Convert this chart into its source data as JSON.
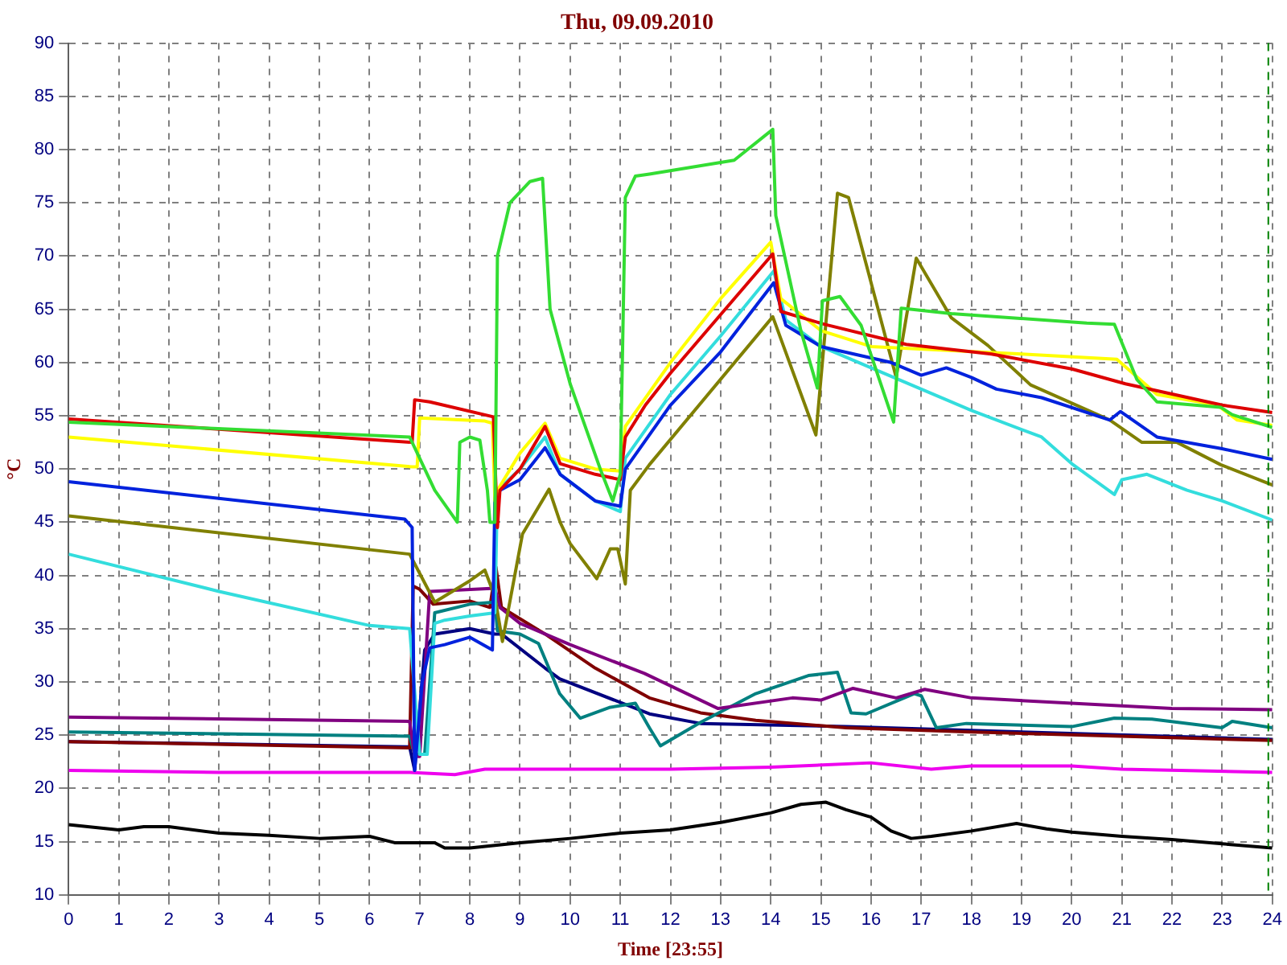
{
  "chart_data": {
    "type": "line",
    "title": "Thu, 09.09.2010",
    "xlabel": "Time [23:55]",
    "ylabel": "°C",
    "xlim": [
      0,
      24
    ],
    "ylim": [
      10,
      90
    ],
    "xticks": [
      0,
      1,
      2,
      3,
      4,
      5,
      6,
      7,
      8,
      9,
      10,
      11,
      12,
      13,
      14,
      15,
      16,
      17,
      18,
      19,
      20,
      21,
      22,
      23,
      24
    ],
    "yticks": [
      10,
      15,
      20,
      25,
      30,
      35,
      40,
      45,
      50,
      55,
      60,
      65,
      70,
      75,
      80,
      85,
      90
    ],
    "grid": true,
    "legend": false,
    "ref_lines": [
      {
        "axis": "x",
        "value": 23.92,
        "color": "#008000",
        "line_style": "dashed"
      }
    ],
    "series": [
      {
        "color": "#33dd33",
        "x": [
          0,
          6.8,
          7.0,
          7.3,
          7.6,
          7.75,
          7.8,
          8.0,
          8.2,
          8.35,
          8.4,
          8.5,
          8.55,
          8.8,
          9.2,
          9.45,
          9.6,
          10,
          10.6,
          10.85,
          11.0,
          11.1,
          11.3,
          11.58,
          13.27,
          14.04,
          14.1,
          14.6,
          14.93,
          15.03,
          15.38,
          15.8,
          16.45,
          16.6,
          17.6,
          20.3,
          20.85,
          21.3,
          21.7,
          22.97,
          23.2,
          24
        ],
        "values": [
          54.4,
          53,
          51,
          48,
          46,
          45,
          52.5,
          53,
          52.7,
          48,
          45,
          45,
          70,
          75,
          77,
          77.3,
          65,
          58,
          50,
          47,
          49.5,
          75.5,
          77.5,
          77.7,
          79,
          81.9,
          73.8,
          63,
          57.6,
          65.8,
          66.2,
          63.5,
          54.4,
          65.1,
          64.6,
          63.7,
          63.6,
          58.4,
          56.3,
          55.8,
          55.1,
          53.9
        ]
      },
      {
        "color": "#dd0000",
        "x": [
          0,
          6.85,
          6.9,
          7.2,
          8.47,
          8.55,
          8.6,
          9.0,
          9.5,
          9.8,
          10.5,
          11.0,
          11.1,
          11.5,
          12,
          13,
          14.04,
          14.2,
          15.06,
          16.7,
          18.4,
          20,
          21.07,
          23,
          24
        ],
        "values": [
          54.7,
          52.5,
          56.5,
          56.3,
          54.9,
          44.5,
          48,
          50,
          54,
          50.5,
          49.5,
          49,
          53,
          56,
          59,
          64.5,
          70.2,
          64.8,
          63.6,
          61.7,
          60.8,
          59.4,
          58,
          56,
          55.3
        ]
      },
      {
        "color": "#ffff00",
        "x": [
          0,
          6.85,
          6.95,
          7.0,
          8.3,
          8.45,
          8.5,
          8.55,
          9.0,
          9.5,
          9.8,
          10.5,
          11,
          11.1,
          12,
          13,
          14.0,
          14.2,
          15,
          16,
          19,
          20.9,
          21.7,
          22.9,
          23.3,
          24
        ],
        "values": [
          53,
          50.2,
          50.2,
          54.8,
          54.5,
          54.3,
          47,
          48,
          51.5,
          54.3,
          51,
          50,
          49.8,
          54,
          60,
          66,
          71.3,
          66,
          63,
          61.5,
          60.8,
          60.3,
          57,
          56,
          54.6,
          54.1
        ]
      },
      {
        "color": "#0022dd",
        "x": [
          0,
          6.7,
          6.85,
          6.9,
          7.05,
          7.2,
          7.5,
          8.0,
          8.45,
          8.5,
          8.6,
          9.0,
          9.5,
          9.8,
          10.5,
          11,
          11.1,
          12,
          13,
          14.06,
          14.3,
          15,
          16.4,
          17,
          17.5,
          18.0,
          18.5,
          19.4,
          20.76,
          20.97,
          21.7,
          23,
          24
        ],
        "values": [
          48.8,
          45.3,
          44.5,
          21.7,
          30,
          33.2,
          33.5,
          34.2,
          33,
          47.5,
          48,
          49,
          52,
          49.5,
          47,
          46.5,
          50,
          56,
          61,
          67.5,
          63.5,
          61.5,
          60,
          58.8,
          59.5,
          58.6,
          57.5,
          56.7,
          54.6,
          55.4,
          53,
          51.9,
          50.9
        ]
      },
      {
        "color": "#33dddd",
        "x": [
          0,
          3,
          6,
          6.8,
          7.0,
          7.15,
          7.3,
          7.5,
          8.0,
          8.5,
          8.55,
          9.0,
          9.5,
          9.8,
          10.5,
          11,
          11.1,
          12,
          13,
          14.06,
          14.3,
          15,
          16,
          17,
          18,
          19.4,
          20,
          20.85,
          21,
          21.5,
          22.3,
          23,
          24
        ],
        "values": [
          42,
          38.5,
          35.3,
          35,
          23.2,
          23.2,
          35.5,
          35.8,
          36.2,
          36.5,
          48,
          50,
          53,
          49.5,
          47,
          46,
          51,
          57,
          62.5,
          68.6,
          64,
          61.5,
          59.5,
          57.5,
          55.5,
          53,
          50.5,
          47.6,
          49,
          49.5,
          48,
          47,
          45.2
        ]
      },
      {
        "color": "#808000",
        "x": [
          0,
          6.8,
          7.3,
          8.0,
          8.3,
          8.5,
          8.65,
          9.05,
          9.58,
          9.8,
          10.0,
          10.53,
          10.8,
          10.95,
          11.1,
          11.2,
          11.58,
          14.04,
          14.9,
          15.33,
          15.55,
          16.5,
          16.9,
          17.6,
          18.33,
          19.18,
          20.76,
          21.4,
          22.1,
          22.97,
          24
        ],
        "values": [
          45.6,
          42,
          37.5,
          39.5,
          40.5,
          38,
          33.8,
          43.9,
          48.1,
          45,
          43,
          39.7,
          42.5,
          42.5,
          39.2,
          48,
          50.4,
          64.3,
          53.2,
          75.9,
          75.5,
          58.6,
          69.8,
          64.2,
          61.6,
          57.9,
          54.6,
          52.5,
          52.5,
          50.4,
          48.5
        ]
      },
      {
        "color": "#800080",
        "x": [
          0,
          6.8,
          6.9,
          7.0,
          7.2,
          8.5,
          8.6,
          9,
          10,
          11.48,
          12.95,
          14.43,
          15,
          15.64,
          16.5,
          17.07,
          18,
          20,
          22,
          24
        ],
        "values": [
          26.7,
          26.3,
          23,
          23,
          38.5,
          38.8,
          37,
          35.5,
          33.5,
          30.8,
          27.5,
          28.5,
          28.3,
          29.4,
          28.5,
          29.3,
          28.5,
          28,
          27.5,
          27.4
        ]
      },
      {
        "color": "#008080",
        "x": [
          0,
          6.8,
          6.9,
          7.1,
          7.3,
          8.0,
          8.5,
          8.55,
          9.0,
          9.37,
          9.79,
          10.2,
          10.78,
          11.3,
          11.58,
          11.8,
          12.6,
          13.7,
          14.75,
          15.33,
          15.6,
          15.9,
          16.86,
          17.0,
          17.3,
          17.9,
          20.0,
          20.85,
          21.6,
          23,
          23.2,
          24
        ],
        "values": [
          25.3,
          24.9,
          23.2,
          23.2,
          36.5,
          37.3,
          37.5,
          34.8,
          34.5,
          33.6,
          28.9,
          26.6,
          27.6,
          28,
          25.7,
          24,
          26.2,
          28.9,
          30.6,
          30.9,
          27.1,
          27,
          28.9,
          28.7,
          25.7,
          26.1,
          25.8,
          26.6,
          26.5,
          25.7,
          26.3,
          25.7
        ]
      },
      {
        "color": "#800000",
        "x": [
          0,
          6.8,
          6.87,
          7.0,
          7.27,
          8.0,
          8.4,
          8.52,
          8.63,
          9.5,
          10.5,
          11.58,
          12.6,
          13.7,
          15.5,
          18,
          24
        ],
        "values": [
          24.4,
          23.8,
          39,
          38.7,
          37.3,
          37.6,
          37,
          40.8,
          37,
          34.5,
          31.3,
          28.5,
          27.1,
          26.4,
          25.7,
          25.3,
          24.5
        ]
      },
      {
        "color": "#000080",
        "x": [
          0,
          6.8,
          6.9,
          7.1,
          7.3,
          8.0,
          8.5,
          8.63,
          9.5,
          9.79,
          11.58,
          12.6,
          15.5,
          24
        ],
        "values": [
          24.4,
          23.9,
          21.7,
          33,
          34.5,
          35,
          34.5,
          34.5,
          31.3,
          30.3,
          27,
          26.1,
          25.8,
          24.6
        ]
      },
      {
        "color": "#ee00ee",
        "x": [
          0,
          3,
          6.8,
          7.7,
          8.3,
          12,
          14,
          16,
          17.2,
          18,
          20,
          21,
          24
        ],
        "values": [
          21.7,
          21.5,
          21.5,
          21.3,
          21.8,
          21.8,
          22,
          22.4,
          21.8,
          22.1,
          22.1,
          21.8,
          21.5
        ]
      },
      {
        "color": "#000000",
        "x": [
          0,
          1,
          1.5,
          2,
          3,
          4,
          5,
          6,
          6.5,
          7.3,
          7.5,
          8,
          9,
          10,
          11,
          12,
          13,
          14,
          14.6,
          15.1,
          15.5,
          16,
          16.4,
          16.8,
          17.2,
          18,
          18.9,
          19.5,
          20,
          21,
          22,
          23,
          24
        ],
        "values": [
          16.6,
          16.1,
          16.4,
          16.4,
          15.8,
          15.6,
          15.3,
          15.5,
          14.9,
          14.9,
          14.4,
          14.4,
          14.9,
          15.3,
          15.8,
          16.1,
          16.8,
          17.7,
          18.5,
          18.7,
          18,
          17.3,
          16,
          15.3,
          15.5,
          16,
          16.7,
          16.2,
          15.9,
          15.5,
          15.2,
          14.8,
          14.4
        ]
      }
    ]
  }
}
